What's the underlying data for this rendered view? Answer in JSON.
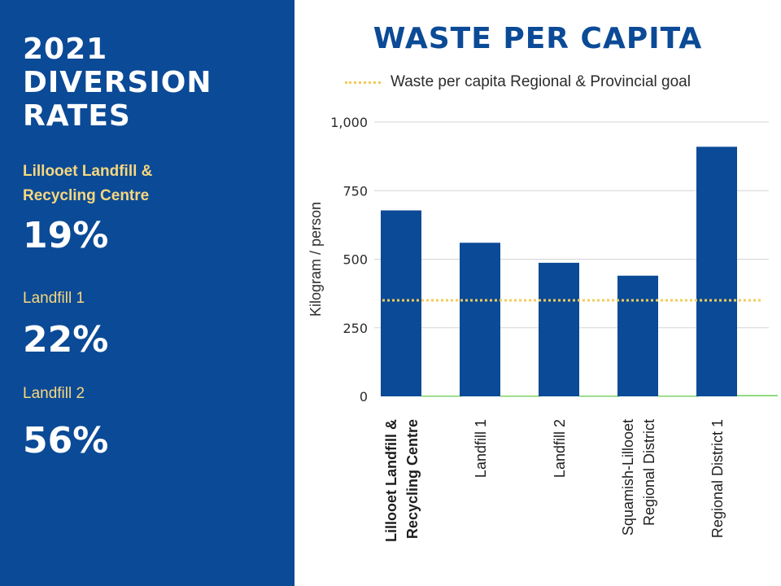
{
  "panel": {
    "title_line1": "2021",
    "title_line2": "DIVERSION",
    "title_line3": "RATES",
    "items": [
      {
        "name_line1": "Lillooet Landfill &",
        "name_line2": "Recycling Centre",
        "rate": "19%"
      },
      {
        "name_line1": "Landfill 1",
        "rate": "22%"
      },
      {
        "name_line1": "Landfill 2",
        "rate": "56%"
      }
    ]
  },
  "colors": {
    "panel_bg": "#0b4a96",
    "bar": "#0b4a96",
    "goal_line": "#f2cc5a",
    "highlight_text": "#f7d77f",
    "baseline_series": "#7ed36a"
  },
  "chart_data": {
    "type": "bar",
    "title": "WASTE PER CAPITA",
    "ylabel": "Kilogram / person",
    "xlabel": "",
    "ylim": [
      0,
      1000
    ],
    "yticks": [
      0,
      250,
      500,
      750,
      1000
    ],
    "ytick_labels": [
      "0",
      "250",
      "500",
      "750",
      "1,000"
    ],
    "grid": true,
    "categories": [
      {
        "lines": [
          "Lillooet Landfill &",
          "Recycling Centre"
        ],
        "bold": true
      },
      {
        "lines": [
          "Landfill 1"
        ],
        "bold": false
      },
      {
        "lines": [
          "Landfill 2"
        ],
        "bold": false
      },
      {
        "lines": [
          "Squamish-Lillooet",
          "Regional District"
        ],
        "bold": false
      },
      {
        "lines": [
          "Regional District 1"
        ],
        "bold": false
      }
    ],
    "series": [
      {
        "type": "bar",
        "values": [
          678,
          560,
          487,
          440,
          910
        ]
      },
      {
        "type": "bar",
        "values": [
          3,
          3,
          3,
          3,
          5
        ]
      }
    ],
    "goal": {
      "label": "Waste per capita Regional & Provincial goal",
      "value": 350
    }
  }
}
